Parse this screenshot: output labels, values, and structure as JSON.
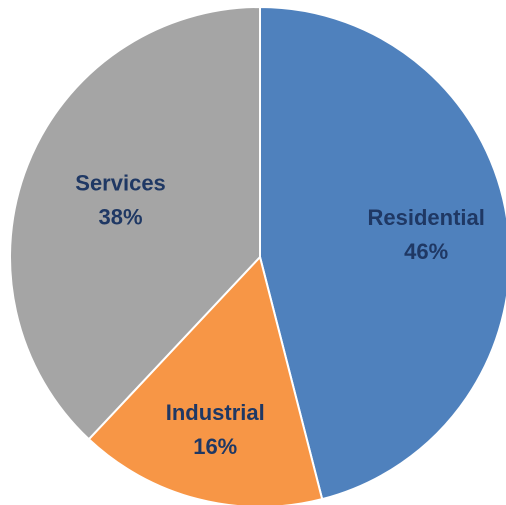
{
  "chart_data": {
    "type": "pie",
    "title": "",
    "slices": [
      {
        "label": "Residential",
        "value": 46,
        "display": "46%",
        "color": "#4f81bd",
        "text_color": "#1f3864"
      },
      {
        "label": "Industrial",
        "value": 16,
        "display": "16%",
        "color": "#f79646",
        "text_color": "#1f3864"
      },
      {
        "label": "Services",
        "value": 38,
        "display": "38%",
        "color": "#a5a5a5",
        "text_color": "#1f3864"
      }
    ],
    "legend": "none",
    "labels_inside_slices": true
  }
}
